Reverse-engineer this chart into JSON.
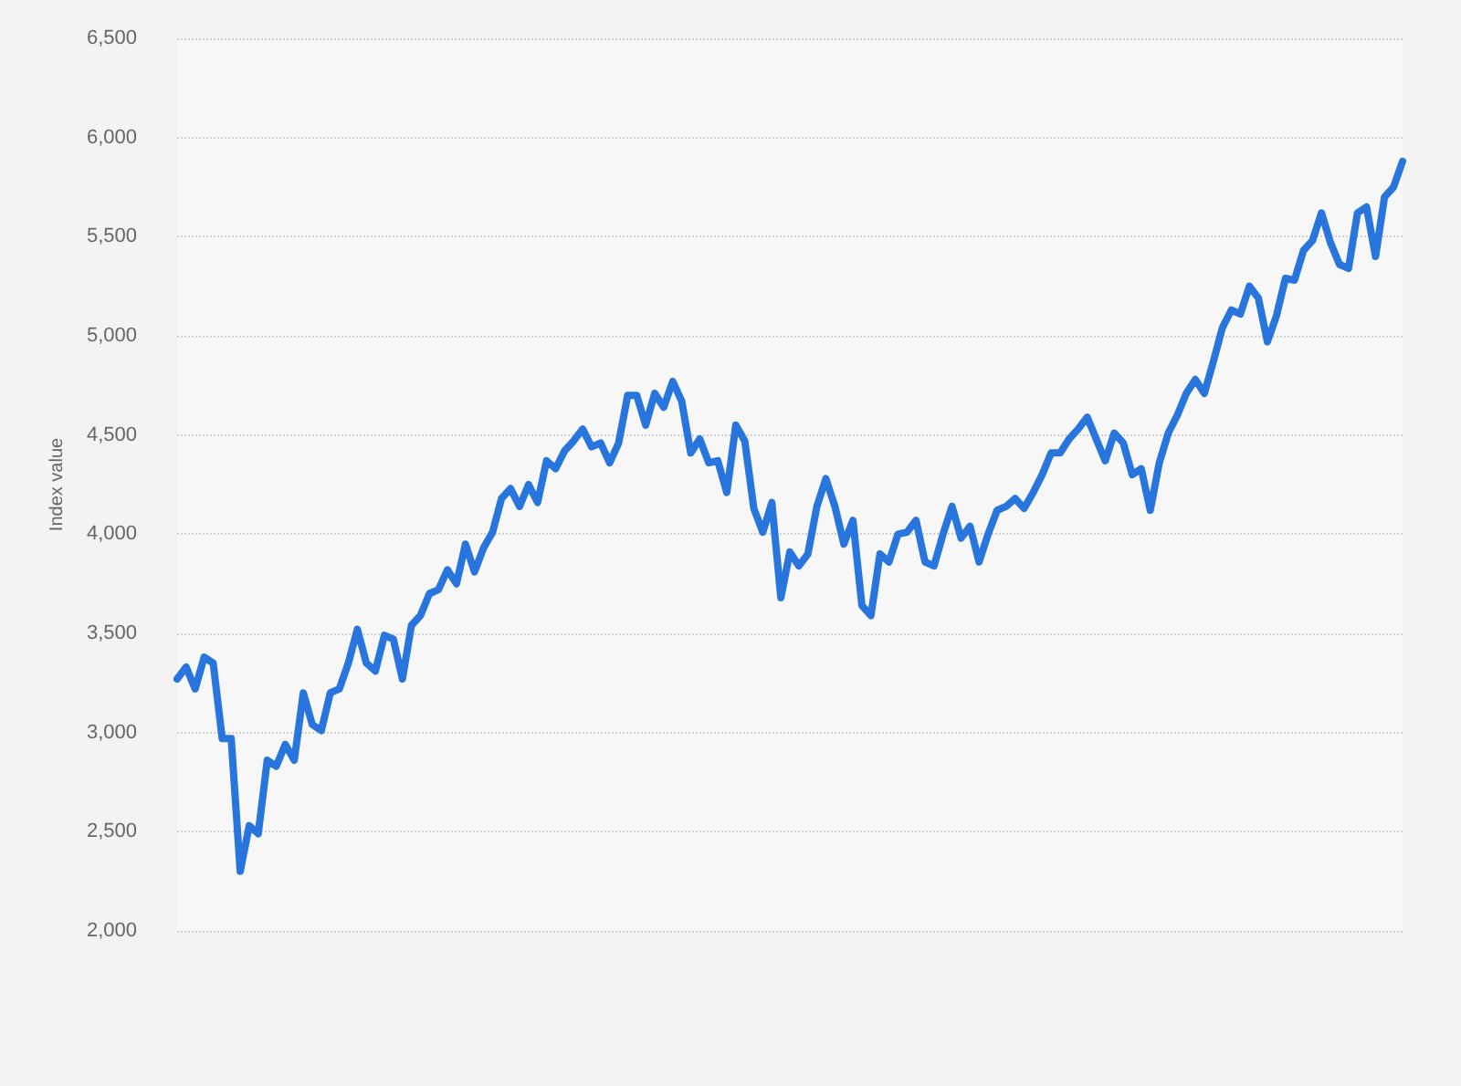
{
  "chart_data": {
    "type": "line",
    "ylabel": "Index value",
    "categories": [
      null,
      null,
      null,
      null,
      null,
      null,
      null,
      null,
      null,
      null,
      null,
      null,
      null,
      null,
      null,
      null,
      null,
      null,
      null,
      null,
      null,
      null,
      null,
      null,
      null,
      null,
      null,
      null,
      null,
      null,
      null,
      null,
      null,
      null,
      null,
      null,
      null,
      null,
      null,
      null,
      null,
      null,
      null,
      null,
      null,
      null,
      null,
      null,
      null,
      null,
      null,
      null,
      null,
      null,
      null,
      null,
      null,
      null,
      null,
      null,
      null,
      null,
      null,
      null,
      null,
      null,
      null,
      null,
      null,
      null,
      null,
      null,
      null,
      null,
      null,
      null,
      null,
      null,
      null,
      null,
      null,
      null,
      null,
      null,
      null,
      null,
      null,
      null,
      null,
      null,
      null,
      null,
      null,
      null,
      null,
      null,
      null,
      null,
      null,
      null,
      null,
      null,
      null,
      null,
      null,
      null,
      null,
      null,
      null,
      null,
      null,
      null,
      null,
      null,
      null,
      null,
      null,
      null,
      null,
      null,
      null,
      null,
      null,
      null,
      null,
      null,
      null,
      null,
      null,
      null,
      null,
      null,
      null,
      null,
      null,
      null,
      null
    ],
    "series": [
      {
        "color": "#2876dd",
        "values": [
          3270,
          3330,
          3220,
          3380,
          3350,
          2970,
          2970,
          2300,
          2530,
          2490,
          2860,
          2830,
          2940,
          2860,
          3200,
          3040,
          3010,
          3200,
          3220,
          3350,
          3520,
          3350,
          3310,
          3490,
          3470,
          3270,
          3540,
          3590,
          3700,
          3720,
          3820,
          3750,
          3950,
          3810,
          3930,
          4010,
          4180,
          4230,
          4140,
          4250,
          4160,
          4370,
          4330,
          4420,
          4470,
          4530,
          4440,
          4460,
          4360,
          4460,
          4700,
          4700,
          4550,
          4710,
          4640,
          4770,
          4670,
          4410,
          4480,
          4360,
          4370,
          4210,
          4550,
          4470,
          4130,
          4010,
          4160,
          3680,
          3910,
          3840,
          3900,
          4140,
          4280,
          4140,
          3950,
          4070,
          3640,
          3590,
          3900,
          3860,
          4000,
          4010,
          4070,
          3860,
          3840,
          4000,
          4140,
          3980,
          4040,
          3860,
          4000,
          4120,
          4140,
          4180,
          4130,
          4210,
          4300,
          4410,
          4410,
          4480,
          4530,
          4590,
          4480,
          4370,
          4510,
          4460,
          4300,
          4330,
          4120,
          4360,
          4510,
          4600,
          4710,
          4780,
          4710,
          4870,
          5040,
          5130,
          5110,
          5250,
          5190,
          4970,
          5100,
          5290,
          5280,
          5430,
          5480,
          5620,
          5470,
          5360,
          5340,
          5620,
          5650,
          5400,
          5700,
          5750,
          5880
        ]
      }
    ],
    "ylim": [
      2000,
      6500
    ],
    "yticks": [
      {
        "value": 2000,
        "label": "2,000"
      },
      {
        "value": 2500,
        "label": "2,500"
      },
      {
        "value": 3000,
        "label": "3,000"
      },
      {
        "value": 3500,
        "label": "3,500"
      },
      {
        "value": 4000,
        "label": "4,000"
      },
      {
        "value": 4500,
        "label": "4,500"
      },
      {
        "value": 5000,
        "label": "5,000"
      },
      {
        "value": 5500,
        "label": "5,500"
      },
      {
        "value": 6000,
        "label": "6,000"
      },
      {
        "value": 6500,
        "label": "6,500"
      }
    ],
    "grid": "y",
    "marker": "none",
    "line_style": "solid"
  }
}
